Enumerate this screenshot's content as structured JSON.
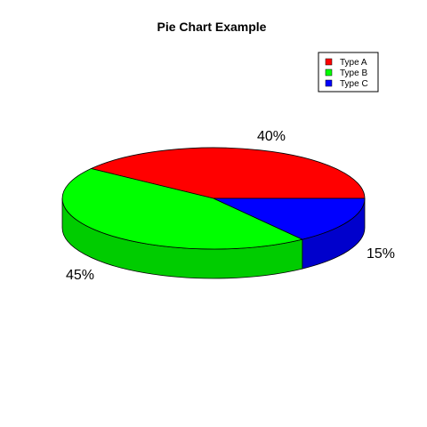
{
  "chart_data": {
    "type": "pie",
    "style": "3d",
    "title": "Pie Chart Example",
    "categories": [
      "Type A",
      "Type B",
      "Type C"
    ],
    "values": [
      40,
      45,
      15
    ],
    "labels": [
      "40%",
      "45%",
      "15%"
    ],
    "colors": [
      "#ff0000",
      "#00ff00",
      "#0000ff"
    ],
    "side_colors": [
      "#cc0000",
      "#00cc00",
      "#0000cc"
    ],
    "legend": {
      "position": "top-right",
      "entries": [
        "Type A",
        "Type B",
        "Type C"
      ]
    }
  }
}
